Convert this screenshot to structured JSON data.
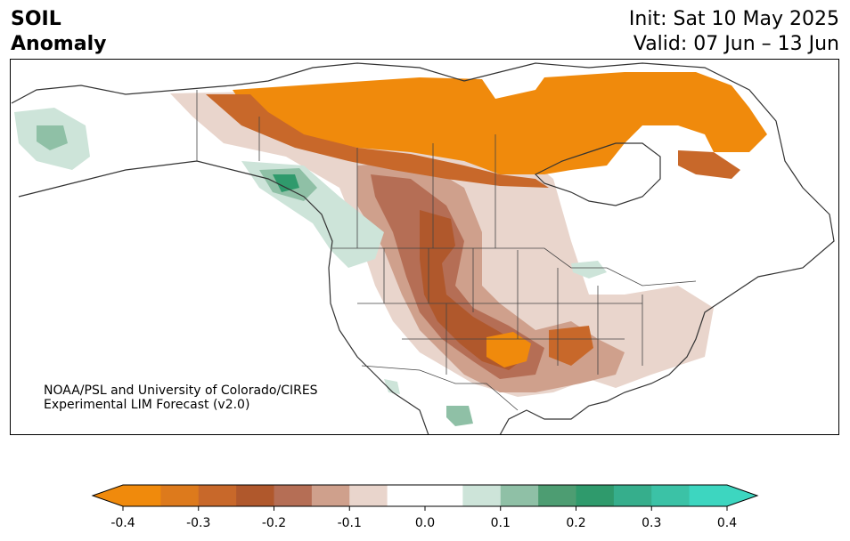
{
  "header": {
    "title_line1": "SOIL",
    "title_line2": "Anomaly",
    "init_label": "Init: Sat 10 May 2025",
    "valid_label": "Valid: 07 Jun – 13 Jun"
  },
  "credit": {
    "line1": "NOAA/PSL and University of Colorado/CIRES",
    "line2": "Experimental LIM Forecast (v2.0)"
  },
  "colorbar": {
    "min": -0.4,
    "max": 0.4,
    "ticks": [
      "-0.4",
      "-0.3",
      "-0.2",
      "-0.1",
      "0.0",
      "0.1",
      "0.2",
      "0.3",
      "0.4"
    ],
    "colors": [
      "#f08a0c",
      "#dd7a1c",
      "#c8682a",
      "#b0582c",
      "#b56e55",
      "#cfa08c",
      "#e9d5cc",
      "#ffffff",
      "#ffffff",
      "#cde4d9",
      "#8fc0a6",
      "#4d9d72",
      "#2f9a6c",
      "#36ae8c",
      "#3bc2a6",
      "#3dd6c0"
    ]
  }
}
